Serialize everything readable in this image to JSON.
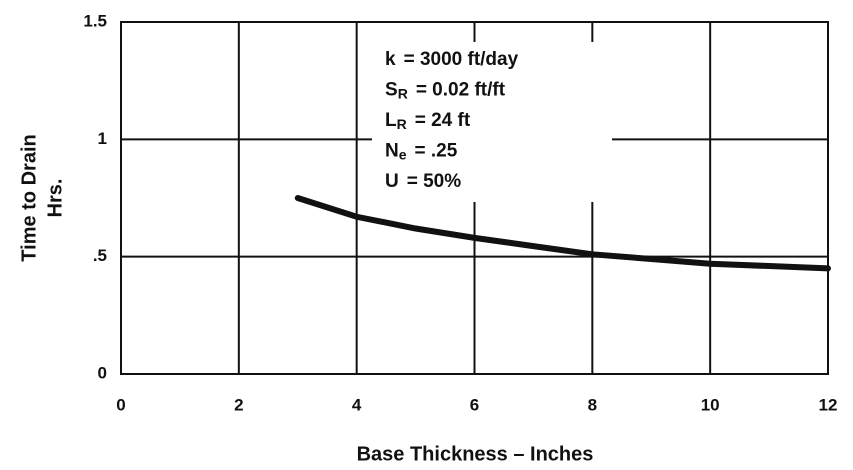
{
  "chart_data": {
    "type": "line",
    "x_label": "Base Thickness – Inches",
    "y_label": [
      "Time to Drain",
      "Hrs."
    ],
    "annotations": [
      {
        "symbol": "k",
        "subscript": "",
        "text": "= 3000 ft/day"
      },
      {
        "symbol": "S",
        "subscript": "R",
        "text": "= 0.02 ft/ft"
      },
      {
        "symbol": "L",
        "subscript": "R",
        "text": "= 24 ft"
      },
      {
        "symbol": "N",
        "subscript": "e",
        "text": "= .25"
      },
      {
        "symbol": "U",
        "subscript": "",
        "text": "= 50%"
      }
    ],
    "x": [
      3,
      4,
      5,
      6,
      7,
      8,
      9,
      10,
      11,
      12
    ],
    "series": [
      {
        "color": "#111111",
        "values": [
          0.75,
          0.67,
          0.62,
          0.58,
          0.545,
          0.51,
          0.49,
          0.47,
          0.46,
          0.45
        ]
      }
    ],
    "xlim": [
      0,
      12
    ],
    "xticks": [
      0,
      2,
      4,
      6,
      8,
      10,
      12
    ],
    "ylim": [
      0,
      1.5
    ],
    "yticks": [
      0,
      {
        "value": 0.5,
        "label": ".5"
      },
      1,
      1.5
    ],
    "grid": true
  }
}
